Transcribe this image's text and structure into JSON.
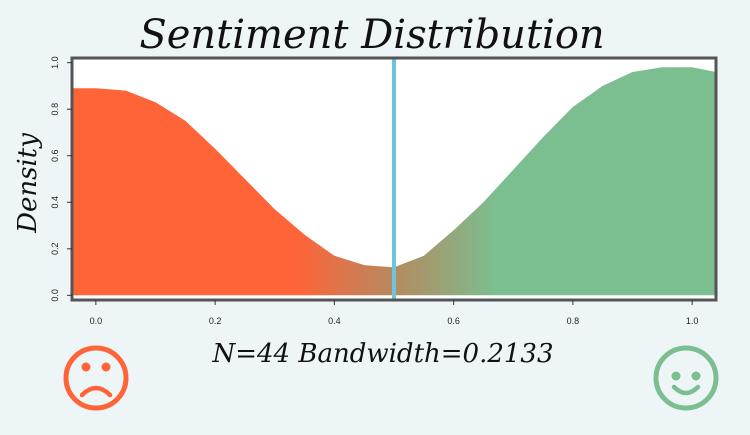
{
  "chart_data": {
    "type": "area",
    "title": "Sentiment Distribution",
    "xlabel": "",
    "ylabel": "Density",
    "caption": "N=44 Bandwidth=0.2133",
    "xlim": [
      -0.04,
      1.04
    ],
    "ylim": [
      -0.02,
      1.02
    ],
    "x_ticks": [
      "0.0",
      "0.2",
      "0.4",
      "0.6",
      "0.8",
      "1.0"
    ],
    "y_ticks": [
      "0.0",
      "0.2",
      "0.4",
      "0.6",
      "0.8",
      "1.0"
    ],
    "series": [
      {
        "x": [
          -0.04,
          0.0,
          0.05,
          0.1,
          0.15,
          0.2,
          0.25,
          0.3,
          0.35,
          0.4,
          0.45,
          0.5,
          0.55,
          0.6,
          0.65,
          0.7,
          0.75,
          0.8,
          0.85,
          0.9,
          0.95,
          1.0,
          1.04
        ],
        "y": [
          0.89,
          0.89,
          0.88,
          0.83,
          0.75,
          0.63,
          0.5,
          0.37,
          0.26,
          0.17,
          0.13,
          0.12,
          0.17,
          0.28,
          0.4,
          0.54,
          0.68,
          0.81,
          0.9,
          0.96,
          0.98,
          0.98,
          0.96
        ]
      }
    ],
    "vline_x": 0.5,
    "grid": false,
    "legend": "none",
    "colors": {
      "negative": "#ff6338",
      "positive": "#7bbf90",
      "middle": "#b58a60",
      "vline": "#6ec4dc",
      "frame": "#555555",
      "background": "#eef5f7"
    },
    "icons": {
      "left": "sad-face-icon",
      "right": "happy-face-icon"
    }
  }
}
